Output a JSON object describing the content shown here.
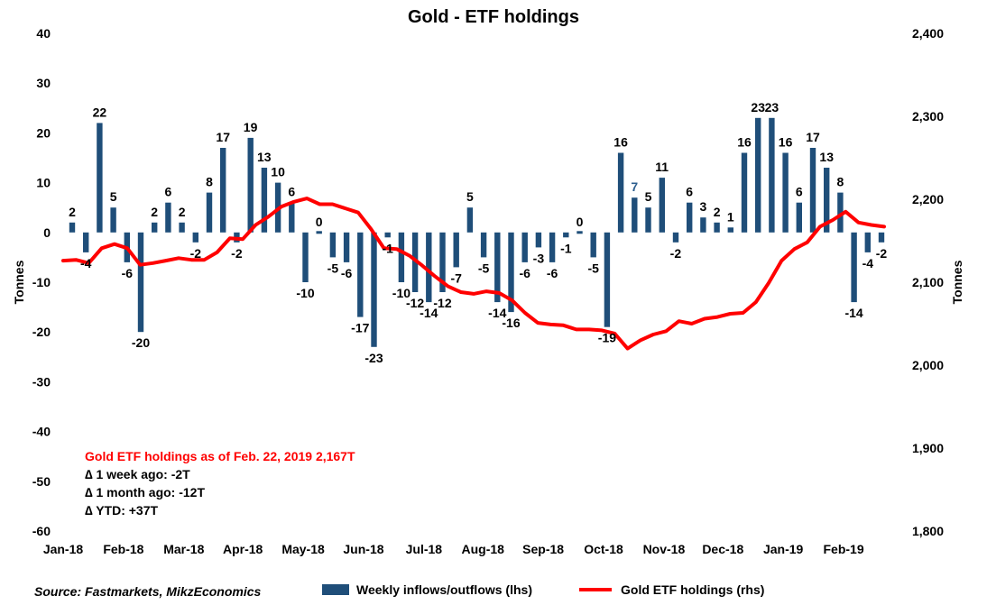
{
  "chart_data": {
    "type": "bar+line",
    "title": "Gold - ETF holdings",
    "ylabel_left": "Tonnes",
    "ylabel_right": "Tonnes",
    "ylim_left": [
      -60,
      40
    ],
    "ylim_right": [
      1800,
      2400
    ],
    "yticks_left": [
      "40",
      "30",
      "20",
      "10",
      "0",
      "-10",
      "-20",
      "-30",
      "-40",
      "-50",
      "-60"
    ],
    "yticks_right": [
      "2,400",
      "2,300",
      "2,200",
      "2,100",
      "2,000",
      "1,900",
      "1,800"
    ],
    "month_labels": [
      "Jan-18",
      "Feb-18",
      "Mar-18",
      "Apr-18",
      "May-18",
      "Jun-18",
      "Jul-18",
      "Aug-18",
      "Sep-18",
      "Oct-18",
      "Nov-18",
      "Dec-18",
      "Jan-19",
      "Feb-19"
    ],
    "month_label_weeks": [
      0,
      4.4,
      8.8,
      13.1,
      17.5,
      21.9,
      26.3,
      30.6,
      35.0,
      39.4,
      43.8,
      48.1,
      52.5,
      56.9
    ],
    "series": [
      {
        "name": "Weekly inflows/outflows (lhs)",
        "kind": "bar",
        "color": "#1f4e79",
        "values": [
          2,
          -4,
          22,
          5,
          -6,
          -20,
          2,
          6,
          2,
          -2,
          8,
          17,
          -2,
          19,
          13,
          10,
          6,
          -10,
          0,
          -5,
          -6,
          -17,
          -23,
          -1,
          -10,
          -12,
          -14,
          -12,
          -7,
          5,
          -5,
          -14,
          -16,
          -6,
          -3,
          -6,
          -1,
          0,
          -5,
          -19,
          16,
          7,
          5,
          11,
          -2,
          6,
          3,
          2,
          1,
          16,
          23,
          23,
          16,
          6,
          17,
          13,
          8,
          -14,
          -4,
          -2
        ],
        "labels": [
          "2",
          "-4",
          "22",
          "5",
          "-6",
          "-20",
          "2",
          "6",
          "2",
          "-2",
          "8",
          "17",
          "-2",
          "19",
          "13",
          "10",
          "6",
          "-10",
          "0",
          "-5",
          "-6",
          "-17",
          "-23",
          "-1",
          "-10",
          "-12",
          "-14",
          "-12",
          "-7",
          "5",
          "-5",
          "-14",
          "-16",
          "-6",
          "-3",
          "-6",
          "-1",
          "0",
          "-5",
          "-19",
          "16",
          "7",
          "5",
          "11",
          "-2",
          "6",
          "3",
          "2",
          "1",
          "16",
          "23",
          "23",
          "16",
          "6",
          "17",
          "13",
          "8",
          "-14",
          "-4",
          "-2"
        ]
      },
      {
        "name": "Gold ETF holdings (rhs)",
        "kind": "line",
        "color": "#ff0000",
        "values": [
          2126,
          2127,
          2123,
          2141,
          2146,
          2141,
          2121,
          2123,
          2126,
          2129,
          2127,
          2127,
          2136,
          2153,
          2152,
          2169,
          2179,
          2191,
          2197,
          2201,
          2194,
          2194,
          2189,
          2184,
          2164,
          2141,
          2140,
          2132,
          2120,
          2107,
          2095,
          2088,
          2086,
          2089,
          2087,
          2078,
          2063,
          2051,
          2049,
          2048,
          2043,
          2043,
          2042,
          2038,
          2020,
          2030,
          2037,
          2041,
          2053,
          2050,
          2056,
          2058,
          2062,
          2063,
          2076,
          2099,
          2126,
          2140,
          2148,
          2167,
          2175,
          2185,
          2172,
          2169,
          2167
        ]
      }
    ],
    "annotation": {
      "headline": "Gold ETF holdings as of Feb. 22, 2019 2,167T",
      "lines": [
        "∆ 1 week ago: -2T",
        "∆ 1 month ago: -12T",
        "∆ YTD: +37T"
      ]
    },
    "legend_position": "bottom",
    "grid": false
  },
  "source": "Source: Fastmarkets, MikzEconomics"
}
